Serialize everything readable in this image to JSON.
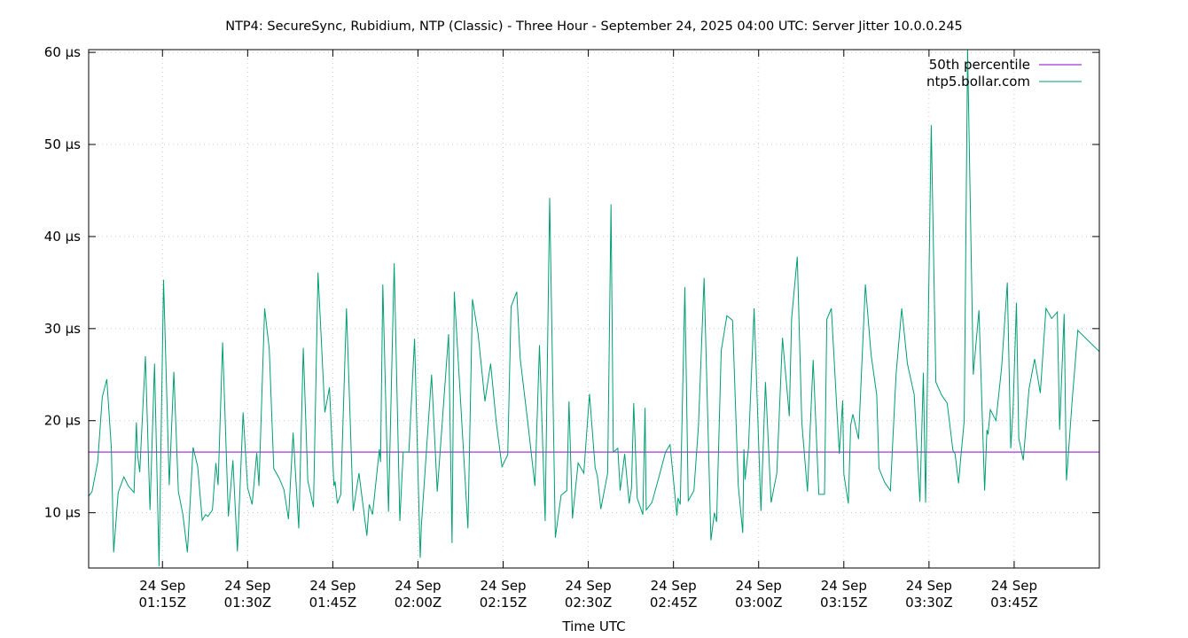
{
  "chart_data": {
    "type": "line",
    "title": "NTP4: SecureSync, Rubidium, NTP (Classic) - Three Hour - September 24, 2025 04:00 UTC: Server Jitter 10.0.0.245",
    "xlabel": "Time UTC",
    "ylabel": "",
    "unit": "µs",
    "ylim": [
      4,
      60.3
    ],
    "xlim": [
      "2025-09-24T01:02:00Z",
      "2025-09-24T04:00:00Z"
    ],
    "y_ticks": [
      {
        "value": 10,
        "label": "10 µs"
      },
      {
        "value": 20,
        "label": "20 µs"
      },
      {
        "value": 30,
        "label": "30 µs"
      },
      {
        "value": 40,
        "label": "40 µs"
      },
      {
        "value": 50,
        "label": "50 µs"
      },
      {
        "value": 60,
        "label": "60 µs"
      }
    ],
    "x_ticks": [
      {
        "time": "2025-09-24T01:15:00Z",
        "line1": "24 Sep",
        "line2": "01:15Z"
      },
      {
        "time": "2025-09-24T01:30:00Z",
        "line1": "24 Sep",
        "line2": "01:30Z"
      },
      {
        "time": "2025-09-24T01:45:00Z",
        "line1": "24 Sep",
        "line2": "01:45Z"
      },
      {
        "time": "2025-09-24T02:00:00Z",
        "line1": "24 Sep",
        "line2": "02:00Z"
      },
      {
        "time": "2025-09-24T02:15:00Z",
        "line1": "24 Sep",
        "line2": "02:15Z"
      },
      {
        "time": "2025-09-24T02:30:00Z",
        "line1": "24 Sep",
        "line2": "02:30Z"
      },
      {
        "time": "2025-09-24T02:45:00Z",
        "line1": "24 Sep",
        "line2": "02:45Z"
      },
      {
        "time": "2025-09-24T03:00:00Z",
        "line1": "24 Sep",
        "line2": "03:00Z"
      },
      {
        "time": "2025-09-24T03:15:00Z",
        "line1": "24 Sep",
        "line2": "03:15Z"
      },
      {
        "time": "2025-09-24T03:30:00Z",
        "line1": "24 Sep",
        "line2": "03:30Z"
      },
      {
        "time": "2025-09-24T03:45:00Z",
        "line1": "24 Sep",
        "line2": "03:45Z"
      }
    ],
    "grid": true,
    "legend_position": "top-right",
    "series": [
      {
        "name": "50th percentile",
        "color": "#9400d3",
        "points": [
          [
            "2025-09-24T01:02:00Z",
            16.6
          ],
          [
            "2025-09-24T04:00:00Z",
            16.6
          ]
        ]
      },
      {
        "name": "ntp5.bollar.com",
        "color": "#009e73",
        "points": [
          [
            "2025-09-24T01:02:00Z",
            11.8
          ],
          [
            "2025-09-24T01:02:36Z",
            12.3
          ],
          [
            "2025-09-24T01:03:36Z",
            15.5
          ],
          [
            "2025-09-24T01:04:24Z",
            22.6
          ],
          [
            "2025-09-24T01:05:12Z",
            24.5
          ],
          [
            "2025-09-24T01:06:00Z",
            17.0
          ],
          [
            "2025-09-24T01:06:24Z",
            5.7
          ],
          [
            "2025-09-24T01:07:12Z",
            12.2
          ],
          [
            "2025-09-24T01:08:12Z",
            13.9
          ],
          [
            "2025-09-24T01:09:00Z",
            12.9
          ],
          [
            "2025-09-24T01:10:00Z",
            12.2
          ],
          [
            "2025-09-24T01:10:24Z",
            19.8
          ],
          [
            "2025-09-24T01:10:36Z",
            16.4
          ],
          [
            "2025-09-24T01:11:00Z",
            14.4
          ],
          [
            "2025-09-24T01:12:00Z",
            27.0
          ],
          [
            "2025-09-24T01:12:48Z",
            10.3
          ],
          [
            "2025-09-24T01:13:36Z",
            26.2
          ],
          [
            "2025-09-24T01:14:24Z",
            4.2
          ],
          [
            "2025-09-24T01:15:12Z",
            35.3
          ],
          [
            "2025-09-24T01:16:12Z",
            13.0
          ],
          [
            "2025-09-24T01:17:00Z",
            25.3
          ],
          [
            "2025-09-24T01:17:48Z",
            12.3
          ],
          [
            "2025-09-24T01:18:36Z",
            9.8
          ],
          [
            "2025-09-24T01:19:24Z",
            5.7
          ],
          [
            "2025-09-24T01:20:24Z",
            17.1
          ],
          [
            "2025-09-24T01:21:12Z",
            15.0
          ],
          [
            "2025-09-24T01:22:00Z",
            9.2
          ],
          [
            "2025-09-24T01:22:36Z",
            9.8
          ],
          [
            "2025-09-24T01:23:00Z",
            9.6
          ],
          [
            "2025-09-24T01:23:48Z",
            10.3
          ],
          [
            "2025-09-24T01:24:24Z",
            15.4
          ],
          [
            "2025-09-24T01:24:48Z",
            13.0
          ],
          [
            "2025-09-24T01:25:36Z",
            28.5
          ],
          [
            "2025-09-24T01:26:36Z",
            9.6
          ],
          [
            "2025-09-24T01:27:24Z",
            15.7
          ],
          [
            "2025-09-24T01:28:12Z",
            5.8
          ],
          [
            "2025-09-24T01:29:12Z",
            20.9
          ],
          [
            "2025-09-24T01:30:00Z",
            12.7
          ],
          [
            "2025-09-24T01:30:48Z",
            10.9
          ],
          [
            "2025-09-24T01:31:36Z",
            16.5
          ],
          [
            "2025-09-24T01:32:00Z",
            12.9
          ],
          [
            "2025-09-24T01:33:00Z",
            32.2
          ],
          [
            "2025-09-24T01:33:48Z",
            27.8
          ],
          [
            "2025-09-24T01:34:36Z",
            14.8
          ],
          [
            "2025-09-24T01:35:36Z",
            13.7
          ],
          [
            "2025-09-24T01:36:24Z",
            12.5
          ],
          [
            "2025-09-24T01:37:12Z",
            9.3
          ],
          [
            "2025-09-24T01:38:00Z",
            18.7
          ],
          [
            "2025-09-24T01:39:00Z",
            8.3
          ],
          [
            "2025-09-24T01:39:48Z",
            27.9
          ],
          [
            "2025-09-24T01:40:36Z",
            13.5
          ],
          [
            "2025-09-24T01:41:36Z",
            10.6
          ],
          [
            "2025-09-24T01:42:24Z",
            36.1
          ],
          [
            "2025-09-24T01:43:36Z",
            20.9
          ],
          [
            "2025-09-24T01:44:24Z",
            23.6
          ],
          [
            "2025-09-24T01:45:12Z",
            12.9
          ],
          [
            "2025-09-24T01:45:24Z",
            13.4
          ],
          [
            "2025-09-24T01:45:48Z",
            11.0
          ],
          [
            "2025-09-24T01:46:24Z",
            12.0
          ],
          [
            "2025-09-24T01:47:24Z",
            32.2
          ],
          [
            "2025-09-24T01:48:36Z",
            10.2
          ],
          [
            "2025-09-24T01:49:36Z",
            14.3
          ],
          [
            "2025-09-24T01:51:00Z",
            7.5
          ],
          [
            "2025-09-24T01:51:24Z",
            10.9
          ],
          [
            "2025-09-24T01:52:00Z",
            9.8
          ],
          [
            "2025-09-24T01:53:12Z",
            16.9
          ],
          [
            "2025-09-24T01:53:24Z",
            15.5
          ],
          [
            "2025-09-24T01:53:48Z",
            34.8
          ],
          [
            "2025-09-24T01:54:48Z",
            10.1
          ],
          [
            "2025-09-24T01:55:48Z",
            37.1
          ],
          [
            "2025-09-24T01:56:48Z",
            9.1
          ],
          [
            "2025-09-24T01:57:24Z",
            16.6
          ],
          [
            "2025-09-24T01:58:24Z",
            16.6
          ],
          [
            "2025-09-24T01:59:24Z",
            28.9
          ],
          [
            "2025-09-24T02:00:24Z",
            5.1
          ],
          [
            "2025-09-24T02:00:36Z",
            8.6
          ],
          [
            "2025-09-24T02:02:24Z",
            25.0
          ],
          [
            "2025-09-24T02:03:24Z",
            12.3
          ],
          [
            "2025-09-24T02:05:24Z",
            29.4
          ],
          [
            "2025-09-24T02:06:00Z",
            6.7
          ],
          [
            "2025-09-24T02:06:24Z",
            34.0
          ],
          [
            "2025-09-24T02:08:48Z",
            8.3
          ],
          [
            "2025-09-24T02:09:36Z",
            33.2
          ],
          [
            "2025-09-24T02:10:36Z",
            29.4
          ],
          [
            "2025-09-24T02:11:48Z",
            22.1
          ],
          [
            "2025-09-24T02:12:48Z",
            26.2
          ],
          [
            "2025-09-24T02:13:48Z",
            19.8
          ],
          [
            "2025-09-24T02:14:48Z",
            15.0
          ],
          [
            "2025-09-24T02:15:48Z",
            16.3
          ],
          [
            "2025-09-24T02:16:24Z",
            32.4
          ],
          [
            "2025-09-24T02:17:24Z",
            34.0
          ],
          [
            "2025-09-24T02:18:00Z",
            26.8
          ],
          [
            "2025-09-24T02:19:24Z",
            19.5
          ],
          [
            "2025-09-24T02:20:36Z",
            12.9
          ],
          [
            "2025-09-24T02:21:24Z",
            28.2
          ],
          [
            "2025-09-24T02:22:24Z",
            9.1
          ],
          [
            "2025-09-24T02:23:12Z",
            44.2
          ],
          [
            "2025-09-24T02:24:12Z",
            7.3
          ],
          [
            "2025-09-24T02:25:12Z",
            11.9
          ],
          [
            "2025-09-24T02:26:12Z",
            12.4
          ],
          [
            "2025-09-24T02:26:36Z",
            22.1
          ],
          [
            "2025-09-24T02:27:12Z",
            9.4
          ],
          [
            "2025-09-24T02:28:12Z",
            15.4
          ],
          [
            "2025-09-24T02:29:12Z",
            14.3
          ],
          [
            "2025-09-24T02:30:12Z",
            22.9
          ],
          [
            "2025-09-24T02:31:12Z",
            14.9
          ],
          [
            "2025-09-24T02:31:36Z",
            14.0
          ],
          [
            "2025-09-24T02:32:12Z",
            10.4
          ],
          [
            "2025-09-24T02:33:24Z",
            14.3
          ],
          [
            "2025-09-24T02:34:00Z",
            43.5
          ],
          [
            "2025-09-24T02:34:24Z",
            16.6
          ],
          [
            "2025-09-24T02:35:12Z",
            17.0
          ],
          [
            "2025-09-24T02:35:36Z",
            12.4
          ],
          [
            "2025-09-24T02:36:24Z",
            16.4
          ],
          [
            "2025-09-24T02:37:12Z",
            11.0
          ],
          [
            "2025-09-24T02:37:36Z",
            12.7
          ],
          [
            "2025-09-24T02:38:00Z",
            21.9
          ],
          [
            "2025-09-24T02:38:36Z",
            11.6
          ],
          [
            "2025-09-24T02:39:36Z",
            9.8
          ],
          [
            "2025-09-24T02:40:00Z",
            21.4
          ],
          [
            "2025-09-24T02:40:12Z",
            10.3
          ],
          [
            "2025-09-24T02:41:12Z",
            11.1
          ],
          [
            "2025-09-24T02:42:24Z",
            13.8
          ],
          [
            "2025-09-24T02:43:36Z",
            16.6
          ],
          [
            "2025-09-24T02:44:24Z",
            17.4
          ],
          [
            "2025-09-24T02:45:36Z",
            9.7
          ],
          [
            "2025-09-24T02:45:48Z",
            11.6
          ],
          [
            "2025-09-24T02:46:12Z",
            10.9
          ],
          [
            "2025-09-24T02:47:00Z",
            34.5
          ],
          [
            "2025-09-24T02:47:36Z",
            11.3
          ],
          [
            "2025-09-24T02:48:36Z",
            12.4
          ],
          [
            "2025-09-24T02:49:24Z",
            19.4
          ],
          [
            "2025-09-24T02:50:24Z",
            35.5
          ],
          [
            "2025-09-24T02:51:36Z",
            7.0
          ],
          [
            "2025-09-24T02:52:12Z",
            10.0
          ],
          [
            "2025-09-24T02:52:36Z",
            9.0
          ],
          [
            "2025-09-24T02:53:24Z",
            27.6
          ],
          [
            "2025-09-24T02:54:24Z",
            31.4
          ],
          [
            "2025-09-24T02:55:24Z",
            30.9
          ],
          [
            "2025-09-24T02:56:24Z",
            13.0
          ],
          [
            "2025-09-24T02:57:12Z",
            7.8
          ],
          [
            "2025-09-24T02:57:24Z",
            16.9
          ],
          [
            "2025-09-24T02:57:36Z",
            13.6
          ],
          [
            "2025-09-24T02:58:12Z",
            17.0
          ],
          [
            "2025-09-24T02:59:12Z",
            32.2
          ],
          [
            "2025-09-24T03:00:24Z",
            10.2
          ],
          [
            "2025-09-24T03:01:12Z",
            24.2
          ],
          [
            "2025-09-24T03:02:12Z",
            11.1
          ],
          [
            "2025-09-24T03:03:12Z",
            14.3
          ],
          [
            "2025-09-24T03:04:12Z",
            29.0
          ],
          [
            "2025-09-24T03:05:24Z",
            20.5
          ],
          [
            "2025-09-24T03:05:48Z",
            31.1
          ],
          [
            "2025-09-24T03:06:48Z",
            37.8
          ],
          [
            "2025-09-24T03:07:36Z",
            19.8
          ],
          [
            "2025-09-24T03:08:36Z",
            12.3
          ],
          [
            "2025-09-24T03:09:36Z",
            26.6
          ],
          [
            "2025-09-24T03:10:36Z",
            12.0
          ],
          [
            "2025-09-24T03:11:36Z",
            12.0
          ],
          [
            "2025-09-24T03:12:00Z",
            31.0
          ],
          [
            "2025-09-24T03:12:48Z",
            32.2
          ],
          [
            "2025-09-24T03:14:12Z",
            16.4
          ],
          [
            "2025-09-24T03:14:48Z",
            22.2
          ],
          [
            "2025-09-24T03:15:00Z",
            14.2
          ],
          [
            "2025-09-24T03:15:48Z",
            11.0
          ],
          [
            "2025-09-24T03:16:12Z",
            19.5
          ],
          [
            "2025-09-24T03:16:36Z",
            20.7
          ],
          [
            "2025-09-24T03:17:36Z",
            18.0
          ],
          [
            "2025-09-24T03:18:48Z",
            34.8
          ],
          [
            "2025-09-24T03:19:48Z",
            27.2
          ],
          [
            "2025-09-24T03:20:48Z",
            22.8
          ],
          [
            "2025-09-24T03:21:12Z",
            14.8
          ],
          [
            "2025-09-24T03:22:12Z",
            13.3
          ],
          [
            "2025-09-24T03:23:12Z",
            12.4
          ],
          [
            "2025-09-24T03:24:12Z",
            25.0
          ],
          [
            "2025-09-24T03:25:12Z",
            32.2
          ],
          [
            "2025-09-24T03:26:12Z",
            26.2
          ],
          [
            "2025-09-24T03:27:24Z",
            22.8
          ],
          [
            "2025-09-24T03:28:24Z",
            11.2
          ],
          [
            "2025-09-24T03:29:00Z",
            25.2
          ],
          [
            "2025-09-24T03:29:24Z",
            11.1
          ],
          [
            "2025-09-24T03:30:24Z",
            52.1
          ],
          [
            "2025-09-24T03:31:12Z",
            24.2
          ],
          [
            "2025-09-24T03:32:12Z",
            22.8
          ],
          [
            "2025-09-24T03:33:12Z",
            21.9
          ],
          [
            "2025-09-24T03:34:12Z",
            16.8
          ],
          [
            "2025-09-24T03:34:36Z",
            16.4
          ],
          [
            "2025-09-24T03:35:12Z",
            13.2
          ],
          [
            "2025-09-24T03:35:36Z",
            16.0
          ],
          [
            "2025-09-24T03:36:12Z",
            20.0
          ],
          [
            "2025-09-24T03:36:48Z",
            60.3
          ],
          [
            "2025-09-24T03:37:48Z",
            25.0
          ],
          [
            "2025-09-24T03:38:48Z",
            32.0
          ],
          [
            "2025-09-24T03:39:48Z",
            12.4
          ],
          [
            "2025-09-24T03:40:12Z",
            19.0
          ],
          [
            "2025-09-24T03:40:24Z",
            18.5
          ],
          [
            "2025-09-24T03:40:48Z",
            21.2
          ],
          [
            "2025-09-24T03:41:48Z",
            20.0
          ],
          [
            "2025-09-24T03:42:48Z",
            25.8
          ],
          [
            "2025-09-24T03:43:48Z",
            35.0
          ],
          [
            "2025-09-24T03:44:24Z",
            17.0
          ],
          [
            "2025-09-24T03:44:48Z",
            21.3
          ],
          [
            "2025-09-24T03:45:24Z",
            32.8
          ],
          [
            "2025-09-24T03:45:48Z",
            18.1
          ],
          [
            "2025-09-24T03:46:36Z",
            15.7
          ],
          [
            "2025-09-24T03:47:36Z",
            23.4
          ],
          [
            "2025-09-24T03:48:36Z",
            26.7
          ],
          [
            "2025-09-24T03:49:36Z",
            23.0
          ],
          [
            "2025-09-24T03:50:36Z",
            32.2
          ],
          [
            "2025-09-24T03:51:36Z",
            31.1
          ],
          [
            "2025-09-24T03:52:36Z",
            31.8
          ],
          [
            "2025-09-24T03:53:00Z",
            19.0
          ],
          [
            "2025-09-24T03:53:48Z",
            31.6
          ],
          [
            "2025-09-24T03:54:12Z",
            13.5
          ],
          [
            "2025-09-24T03:55:12Z",
            22.1
          ],
          [
            "2025-09-24T03:56:12Z",
            29.8
          ],
          [
            "2025-09-24T04:00:00Z",
            27.5
          ]
        ]
      }
    ]
  }
}
